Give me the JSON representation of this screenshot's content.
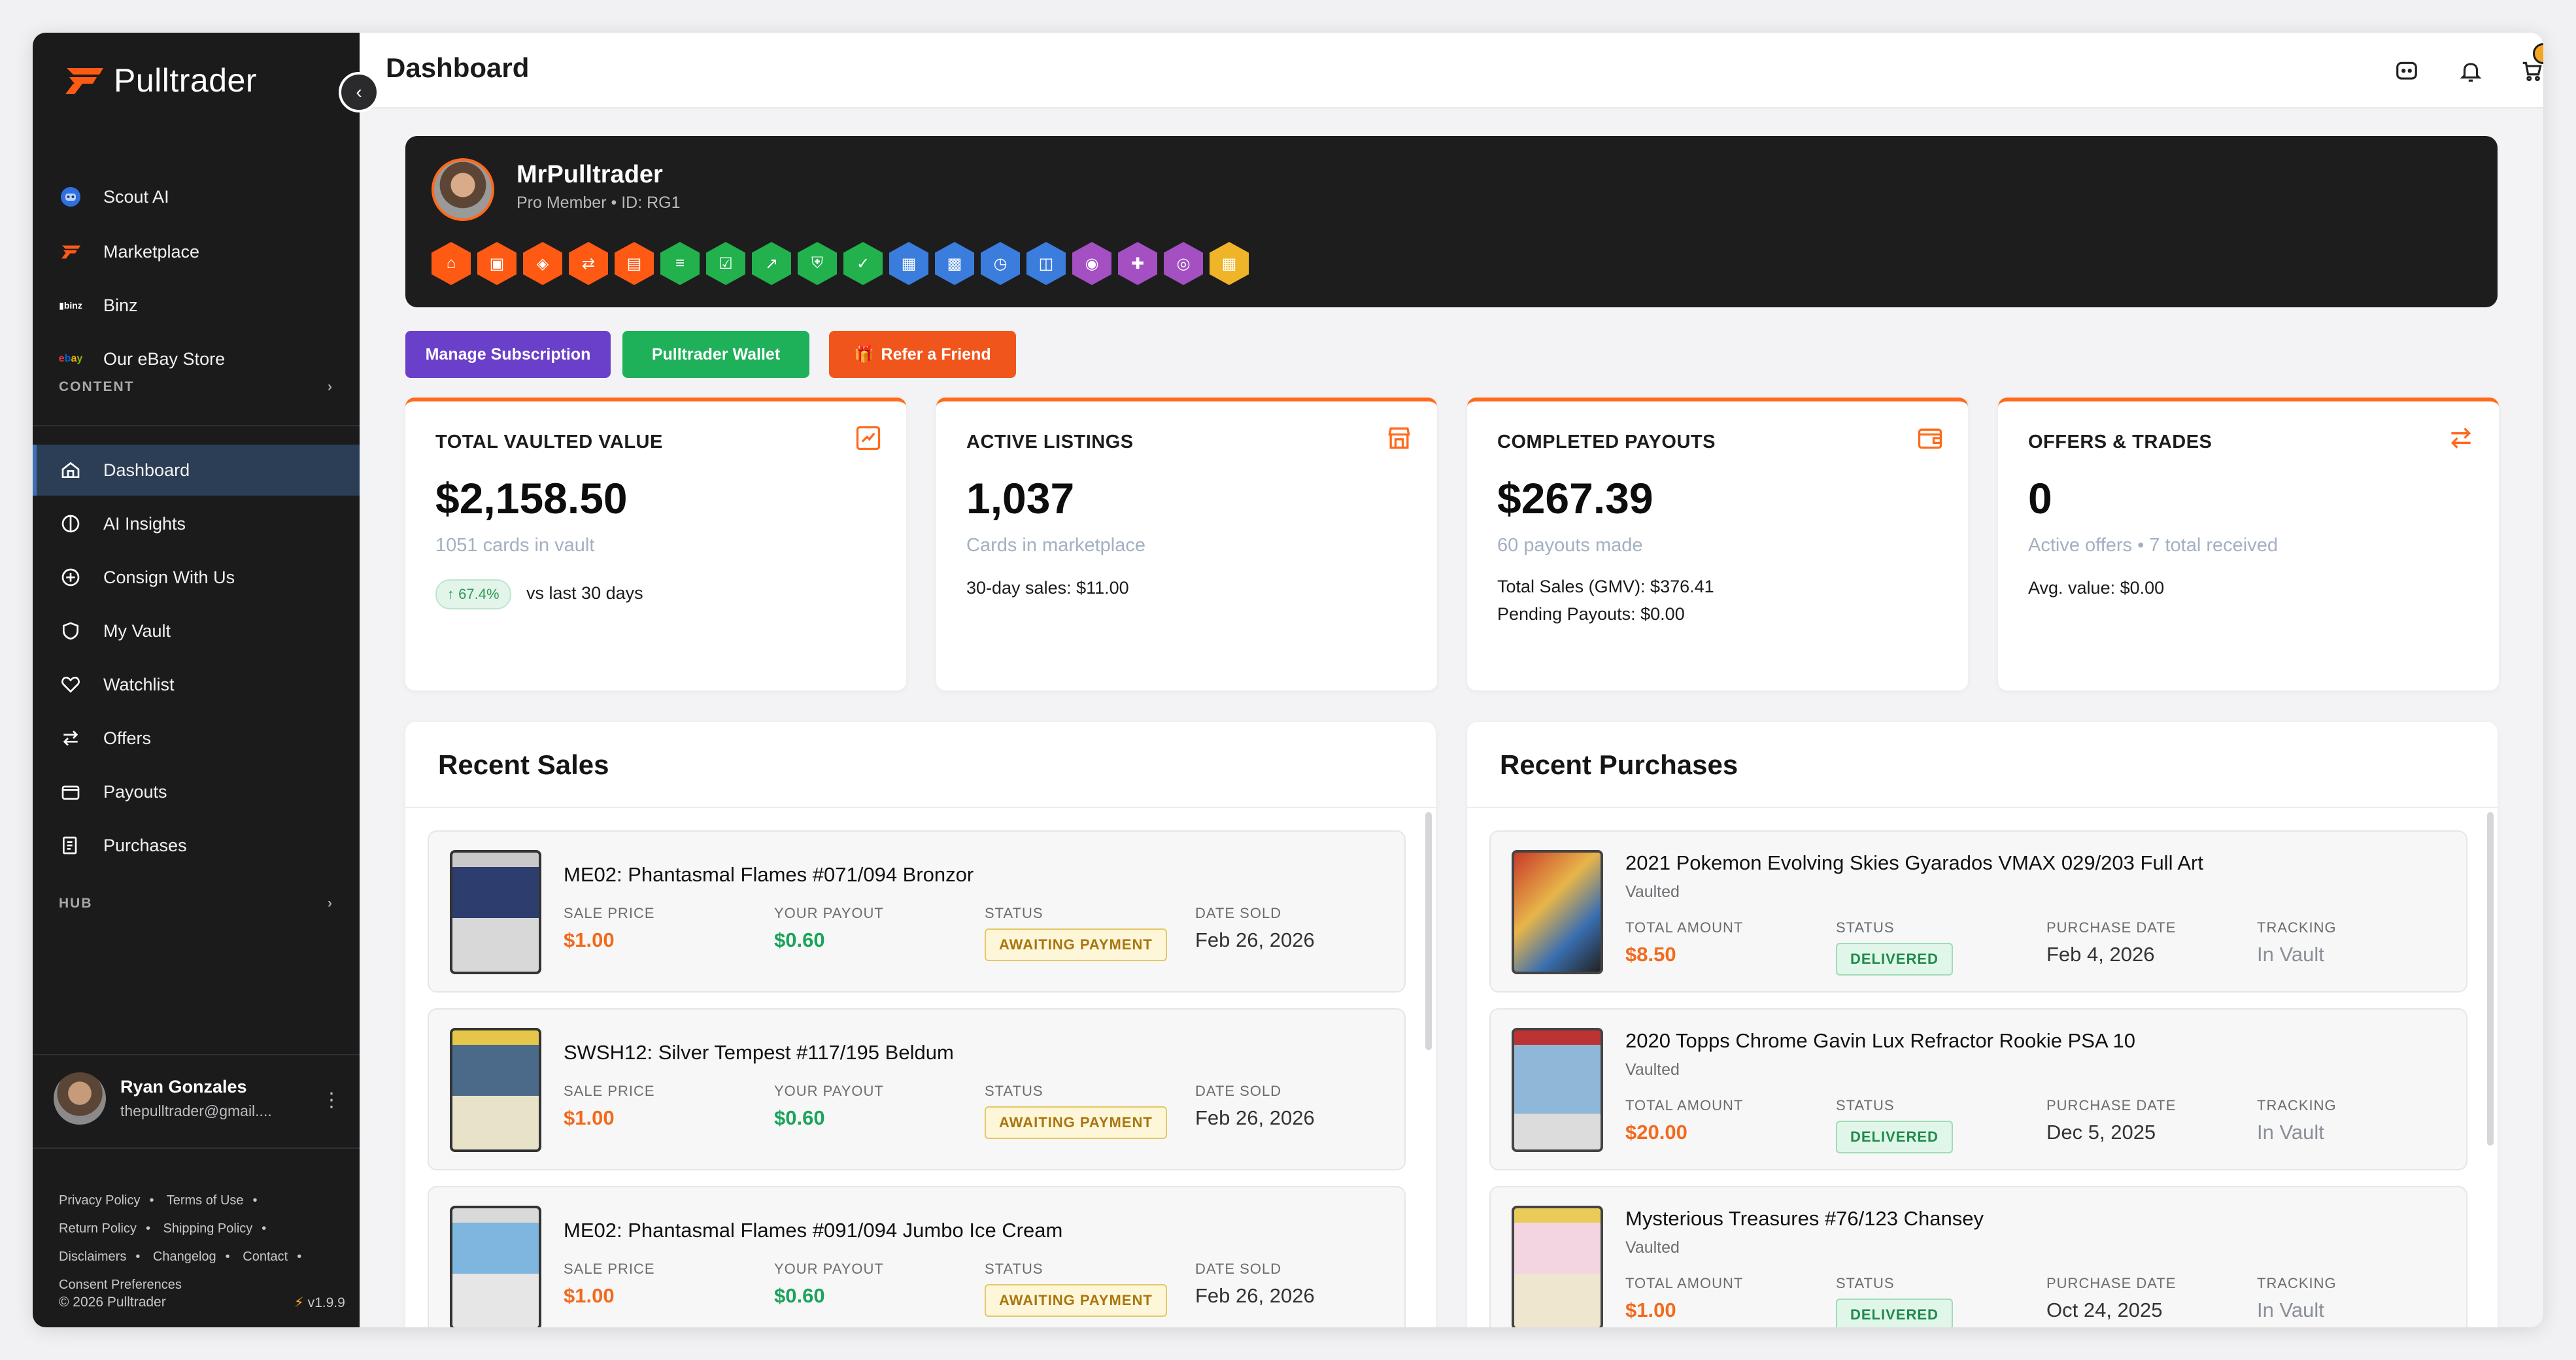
{
  "brand": {
    "name": "Pulltrader",
    "accent": "#ff6a1a"
  },
  "sidebar": {
    "top_items": [
      {
        "label": "Scout AI",
        "icon": "robot-icon"
      },
      {
        "label": "Marketplace",
        "icon": "pulltrader-logo-icon"
      },
      {
        "label": "Binz",
        "icon": "binz-logo-icon"
      },
      {
        "label": "Our eBay Store",
        "icon": "ebay-logo-icon"
      }
    ],
    "content_label": "CONTENT",
    "items": [
      {
        "label": "Dashboard",
        "icon": "home-icon"
      },
      {
        "label": "AI Insights",
        "icon": "brain-icon"
      },
      {
        "label": "Consign With Us",
        "icon": "plus-circle-icon"
      },
      {
        "label": "My Vault",
        "icon": "shield-icon"
      },
      {
        "label": "Watchlist",
        "icon": "heart-icon"
      },
      {
        "label": "Offers",
        "icon": "swap-icon"
      },
      {
        "label": "Payouts",
        "icon": "wallet-icon"
      },
      {
        "label": "Purchases",
        "icon": "receipt-icon"
      }
    ],
    "hub_label": "HUB",
    "user": {
      "name": "Ryan Gonzales",
      "email": "thepulltrader@gmail...."
    },
    "footer_links": [
      "Privacy Policy",
      "Terms of Use",
      "Return Policy",
      "Shipping Policy",
      "Disclaimers",
      "Changelog",
      "Contact",
      "Consent Preferences"
    ],
    "copyright": "© 2026 Pulltrader",
    "version": "v1.9.9"
  },
  "topbar": {
    "title": "Dashboard"
  },
  "profile": {
    "name": "MrPulltrader",
    "member": "Pro Member",
    "id": "• ID: RG1",
    "badge_colors": [
      "#ff5a14",
      "#ff5a14",
      "#ff5a14",
      "#ff5a14",
      "#ff5a14",
      "#22b14c",
      "#22b14c",
      "#22b14c",
      "#22b14c",
      "#22b14c",
      "#3b7ddd",
      "#3b7ddd",
      "#3b7ddd",
      "#3b7ddd",
      "#a44fc2",
      "#a44fc2",
      "#a44fc2",
      "#f0b429"
    ]
  },
  "actions": {
    "manage": "Manage Subscription",
    "wallet": "Pulltrader Wallet",
    "refer": "Refer a Friend"
  },
  "stats": {
    "vault": {
      "title": "TOTAL VAULTED VALUE",
      "value": "$2,158.50",
      "sub": "1051 cards in vault",
      "trend": "67.4%",
      "trend_text": "vs last 30 days"
    },
    "listings": {
      "title": "ACTIVE LISTINGS",
      "value": "1,037",
      "sub": "Cards in marketplace",
      "line1": "30-day sales: $11.00"
    },
    "payouts": {
      "title": "COMPLETED PAYOUTS",
      "value": "$267.39",
      "sub": "60 payouts made",
      "line1": "Total Sales (GMV): $376.41",
      "line2": "Pending Payouts: $0.00"
    },
    "offers": {
      "title": "OFFERS & TRADES",
      "value": "0",
      "sub": "Active offers • 7 total received",
      "line1": "Avg. value: $0.00"
    }
  },
  "sales": {
    "title": "Recent Sales",
    "labels": {
      "price": "SALE PRICE",
      "payout": "YOUR PAYOUT",
      "status": "STATUS",
      "date": "DATE SOLD"
    },
    "rows": [
      {
        "title": "ME02: Phantasmal Flames #071/094 Bronzor",
        "price": "$1.00",
        "payout": "$0.60",
        "status": "AWAITING PAYMENT",
        "date": "Feb 26, 2026"
      },
      {
        "title": "SWSH12: Silver Tempest #117/195 Beldum",
        "price": "$1.00",
        "payout": "$0.60",
        "status": "AWAITING PAYMENT",
        "date": "Feb 26, 2026"
      },
      {
        "title": "ME02: Phantasmal Flames #091/094 Jumbo Ice Cream",
        "price": "$1.00",
        "payout": "$0.60",
        "status": "AWAITING PAYMENT",
        "date": "Feb 26, 2026"
      }
    ]
  },
  "purchases": {
    "title": "Recent Purchases",
    "labels": {
      "amount": "TOTAL AMOUNT",
      "status": "STATUS",
      "date": "PURCHASE DATE",
      "tracking": "TRACKING"
    },
    "rows": [
      {
        "title": "2021 Pokemon Evolving Skies Gyarados VMAX 029/203 Full Art",
        "sub": "Vaulted",
        "amount": "$8.50",
        "status": "DELIVERED",
        "date": "Feb 4, 2026",
        "tracking": "In Vault"
      },
      {
        "title": "2020 Topps Chrome Gavin Lux Refractor Rookie PSA 10",
        "sub": "Vaulted",
        "amount": "$20.00",
        "status": "DELIVERED",
        "date": "Dec 5, 2025",
        "tracking": "In Vault"
      },
      {
        "title": "Mysterious Treasures #76/123 Chansey",
        "sub": "Vaulted",
        "amount": "$1.00",
        "status": "DELIVERED",
        "date": "Oct 24, 2025",
        "tracking": "In Vault"
      }
    ]
  }
}
